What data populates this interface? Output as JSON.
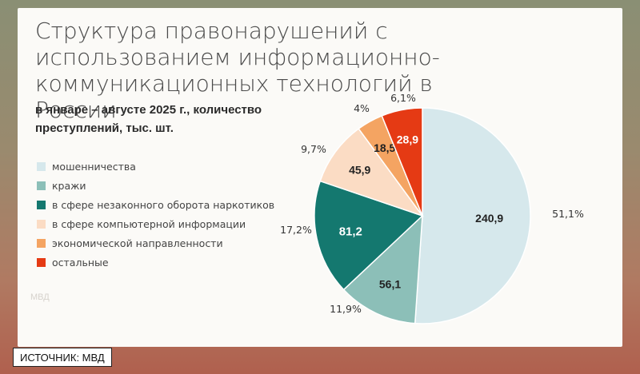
{
  "title": "Структура правонарушений с использованием информационно-коммуникационных технологий в России",
  "subtitle": "в январе – августе 2025 г., количество преступлений, тыс. шт.",
  "watermark": "МВД",
  "source": "ИСТОЧНИК: МВД",
  "chart_data": {
    "type": "pie",
    "title": "Структура правонарушений с использованием информационно-коммуникационных технологий в России",
    "subtitle": "в январе – августе 2025 г., количество преступлений, тыс. шт.",
    "unit": "тыс. шт.",
    "legend_position": "left",
    "slices": [
      {
        "name": "мошенничества",
        "value": 240.9,
        "value_label": "240,9",
        "percent": 51.1,
        "percent_label": "51,1%",
        "color": "#d6e8ec",
        "text_color": "#222222"
      },
      {
        "name": "кражи",
        "value": 56.1,
        "value_label": "56,1",
        "percent": 11.9,
        "percent_label": "11,9%",
        "color": "#8cbfb8",
        "text_color": "#222222"
      },
      {
        "name": "в сфере незаконного оборота наркотиков",
        "value": 81.2,
        "value_label": "81,2",
        "percent": 17.2,
        "percent_label": "17,2%",
        "color": "#14786f",
        "text_color": "#ffffff"
      },
      {
        "name": "в сфере компьютерной информации",
        "value": 45.9,
        "value_label": "45,9",
        "percent": 9.7,
        "percent_label": "9,7%",
        "color": "#fbdcc4",
        "text_color": "#222222"
      },
      {
        "name": "экономической направленности",
        "value": 18.5,
        "value_label": "18,5",
        "percent": 4.0,
        "percent_label": "4%",
        "color": "#f4a462",
        "text_color": "#222222"
      },
      {
        "name": "остальные",
        "value": 28.9,
        "value_label": "28,9",
        "percent": 6.1,
        "percent_label": "6,1%",
        "color": "#e53a14",
        "text_color": "#ffffff"
      }
    ]
  }
}
